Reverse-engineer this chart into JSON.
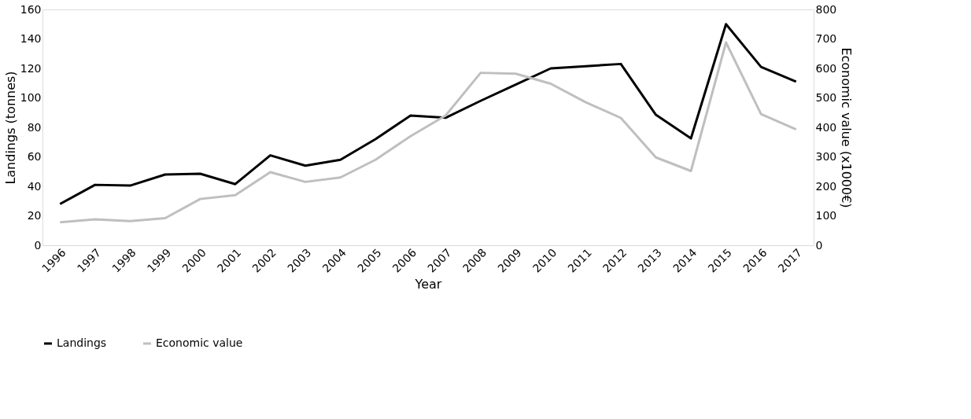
{
  "chart_data": {
    "type": "line",
    "xlabel": "Year",
    "ylabel": "Landings (tonnes)",
    "y2label": "Economic value (x1000€)",
    "categories": [
      "1996",
      "1997",
      "1998",
      "1999",
      "2000",
      "2001",
      "2002",
      "2003",
      "2004",
      "2005",
      "2006",
      "2007",
      "2008",
      "2009",
      "2010",
      "2011",
      "2012",
      "2013",
      "2014",
      "2015",
      "2016",
      "2017"
    ],
    "series": [
      {
        "name": "Landings",
        "color": "#000000",
        "values": [
          28,
          41,
          40.5,
          48,
          48.5,
          41.5,
          61,
          54,
          58,
          72,
          88,
          86.5,
          98,
          109,
          120,
          121.5,
          123,
          88.5,
          72.5,
          150,
          121,
          111
        ]
      },
      {
        "name": "Economic value",
        "color": "#bfbfbf",
        "axis": "y2",
        "values": [
          78,
          88,
          82,
          92,
          157,
          170,
          248,
          215,
          230,
          290,
          370,
          440,
          585,
          582,
          548,
          485,
          432,
          298,
          252,
          688,
          445,
          393
        ]
      }
    ],
    "ylim": [
      0,
      160
    ],
    "yticks": [
      0,
      20,
      40,
      60,
      80,
      100,
      120,
      140,
      160
    ],
    "y2lim": [
      0,
      800
    ],
    "y2ticks": [
      0,
      100,
      200,
      300,
      400,
      500,
      600,
      700,
      800
    ],
    "legend": "bottom",
    "grid": false,
    "line_style": "solid"
  }
}
